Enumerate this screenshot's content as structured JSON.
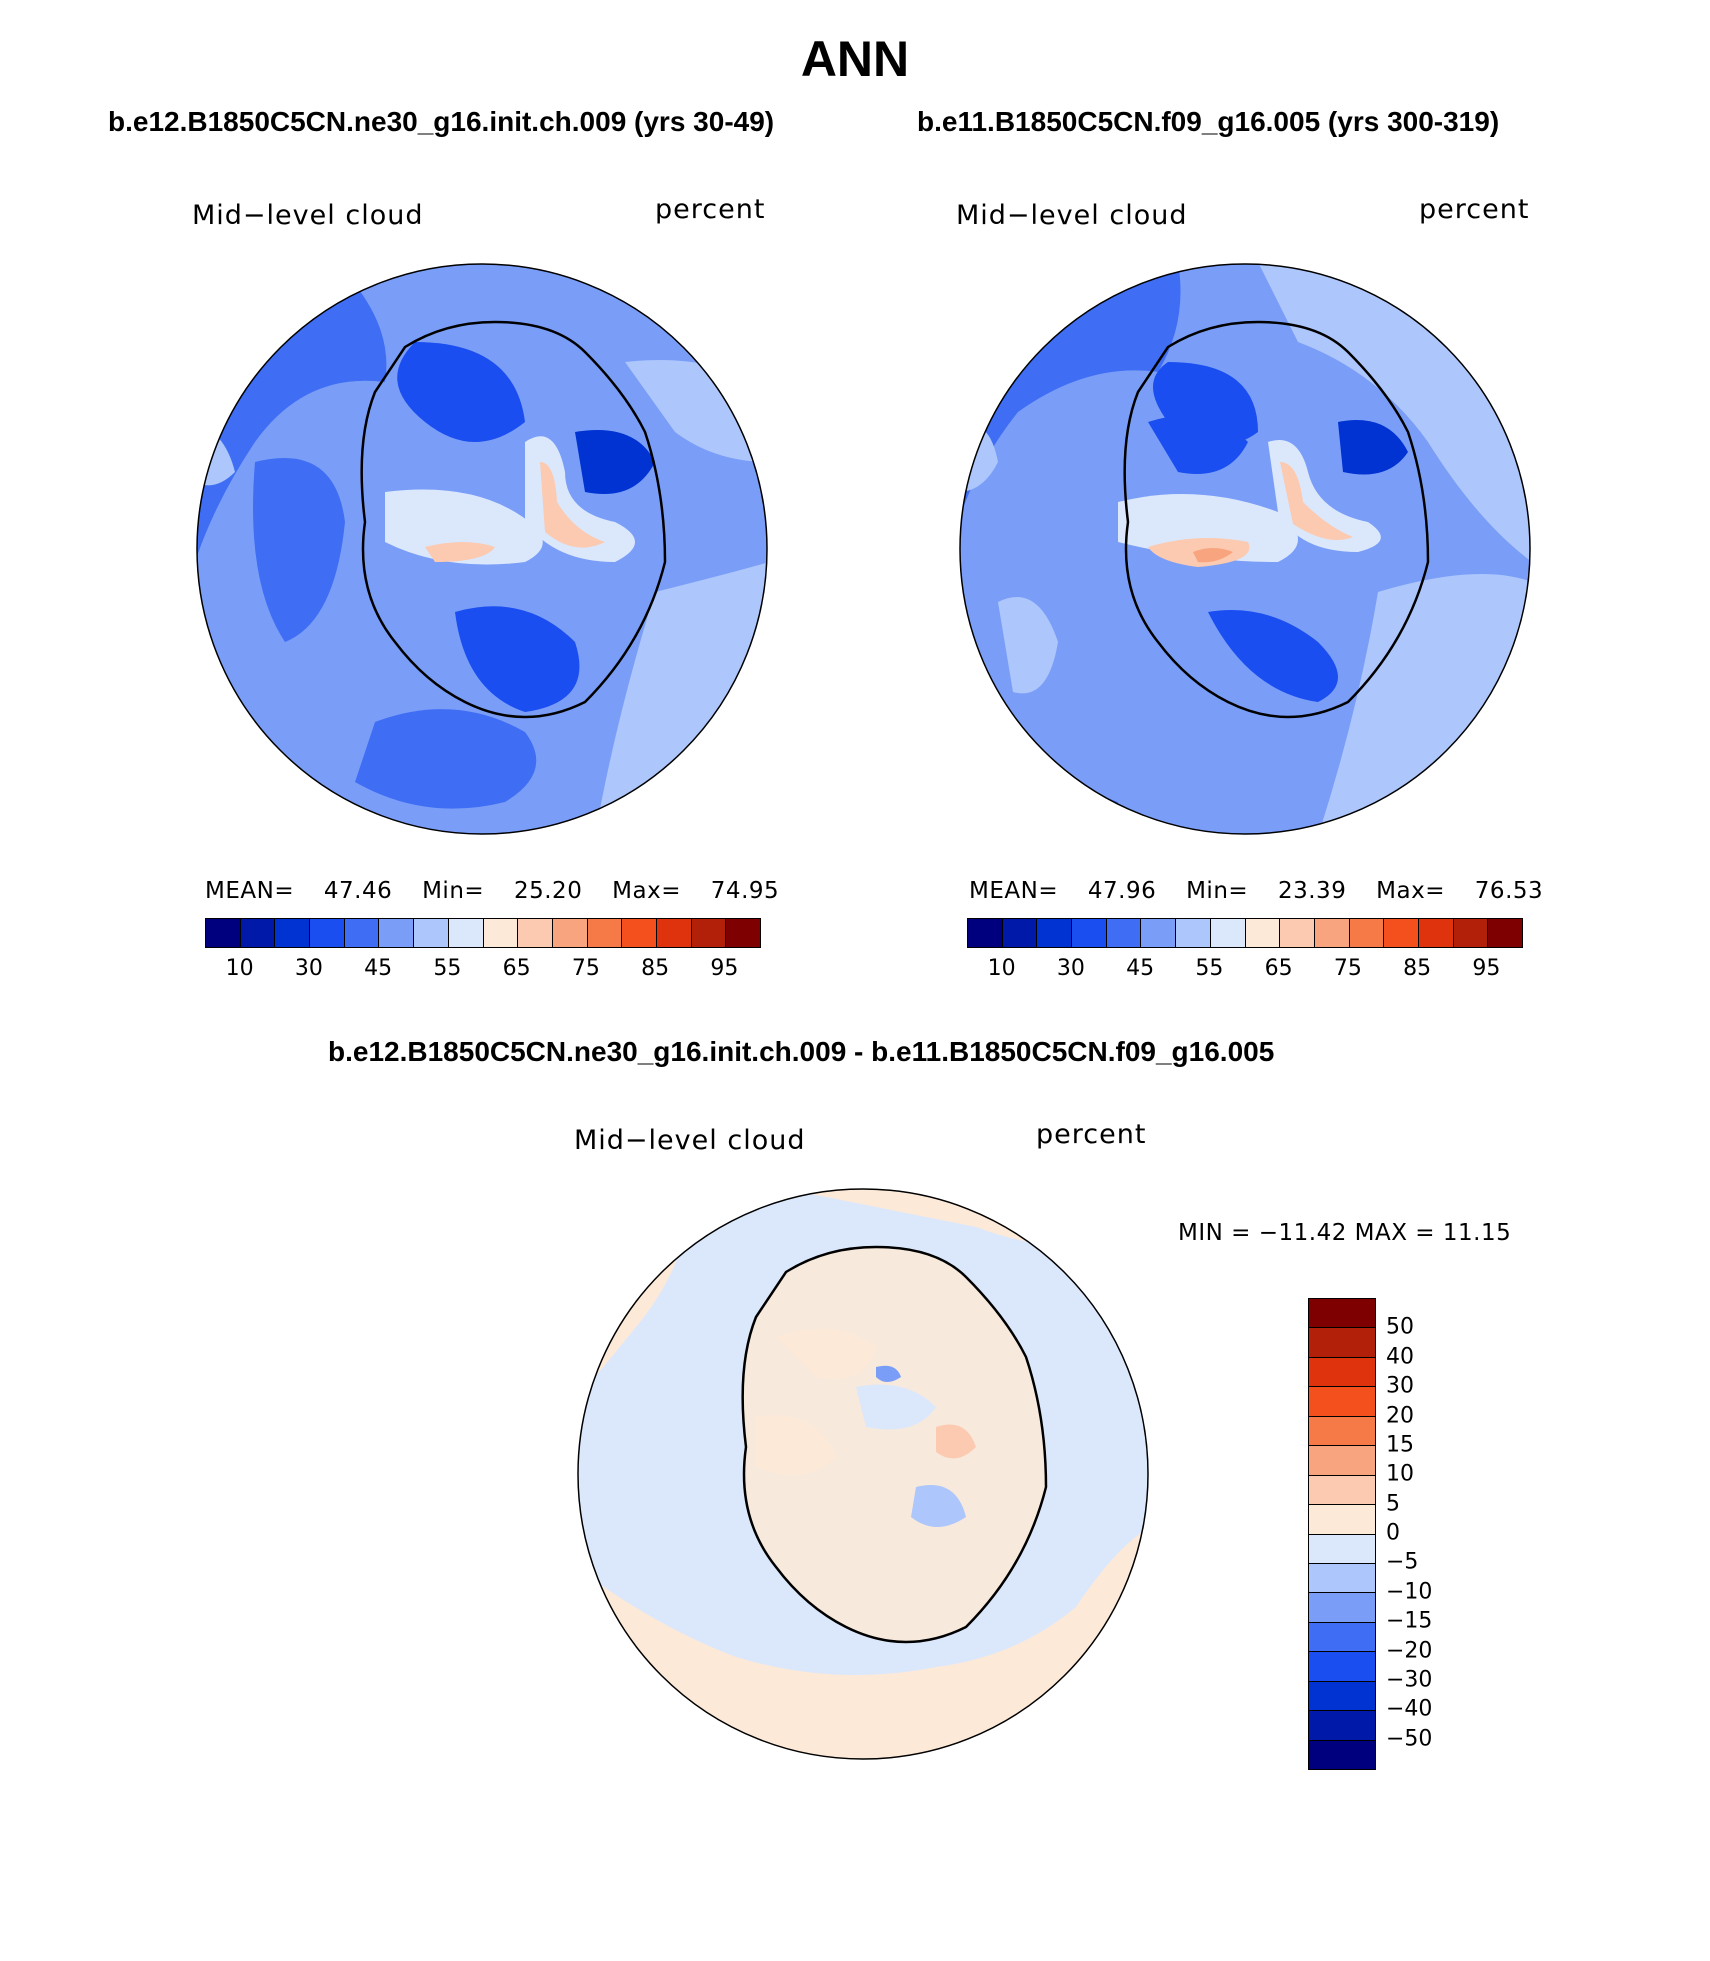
{
  "title": "ANN",
  "panels": [
    {
      "run_title": "b.e12.B1850C5CN.ne30_g16.init.ch.009 (yrs 30-49)",
      "variable": "Mid−level cloud",
      "units": "percent",
      "stats": {
        "mean_label": "MEAN=",
        "mean": "47.46",
        "min_label": "Min=",
        "min": "25.20",
        "max_label": "Max=",
        "max": "74.95"
      }
    },
    {
      "run_title": "b.e11.B1850C5CN.f09_g16.005 (yrs 300-319)",
      "variable": "Mid−level cloud",
      "units": "percent",
      "stats": {
        "mean_label": "MEAN=",
        "mean": "47.96",
        "min_label": "Min=",
        "min": "23.39",
        "max_label": "Max=",
        "max": "76.53"
      }
    }
  ],
  "diff": {
    "title": "b.e12.B1850C5CN.ne30_g16.init.ch.009 - b.e11.B1850C5CN.f09_g16.005",
    "variable": "Mid−level cloud",
    "units": "percent",
    "minmax": "MIN = −11.42 MAX =  11.15"
  },
  "colorbar_abs": {
    "colors": [
      "#00007f",
      "#0019a8",
      "#0033d1",
      "#1a4ef0",
      "#3f6ef5",
      "#7a9ef8",
      "#adc6fb",
      "#dbe8fc",
      "#fde9d7",
      "#fbcab0",
      "#f8a57f",
      "#f67a48",
      "#f4501e",
      "#de330c",
      "#b3200a",
      "#7f0000"
    ],
    "labels": [
      "10",
      "30",
      "45",
      "55",
      "65",
      "75",
      "85",
      "95"
    ]
  },
  "colorbar_diff": {
    "colors": [
      "#7f0000",
      "#b3200a",
      "#de330c",
      "#f4501e",
      "#f67a48",
      "#f8a57f",
      "#fbcab0",
      "#fde9d7",
      "#dbe8fc",
      "#adc6fb",
      "#7a9ef8",
      "#3f6ef5",
      "#1a4ef0",
      "#0033d1",
      "#0019a8",
      "#00007f"
    ],
    "labels": [
      "50",
      "40",
      "30",
      "20",
      "15",
      "10",
      "5",
      "0",
      "−5",
      "−10",
      "−15",
      "−20",
      "−30",
      "−40",
      "−50"
    ]
  }
}
